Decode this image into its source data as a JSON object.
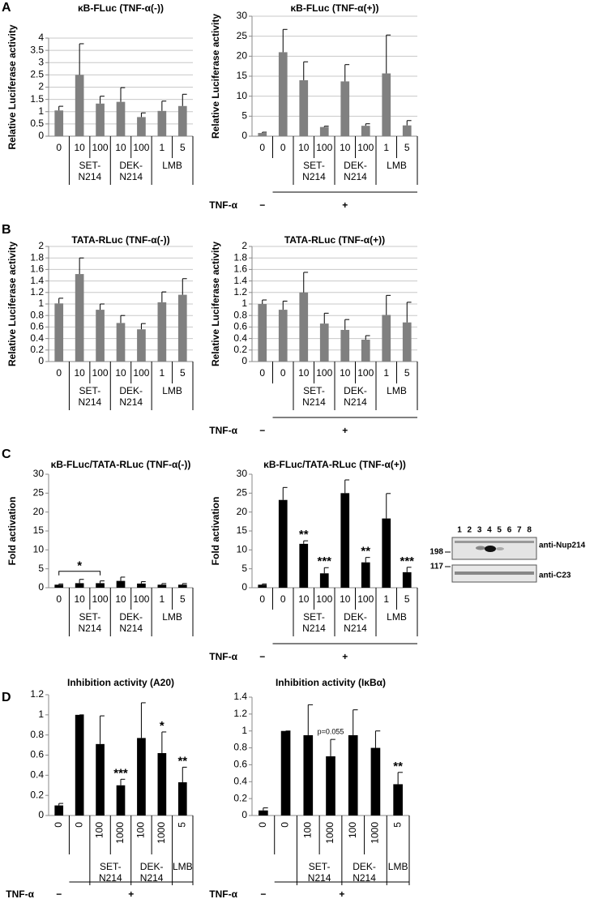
{
  "panels": [
    "A",
    "B",
    "C",
    "D"
  ],
  "blot": {
    "lanes": [
      "1",
      "2",
      "3",
      "4",
      "5",
      "6",
      "7",
      "8"
    ],
    "markers": [
      "198",
      "117"
    ],
    "antibodies": [
      "anti-Nup214",
      "anti-C23"
    ]
  },
  "chart_data": [
    {
      "type": "bar",
      "title": "κB-FLuc (TNF-α(-))",
      "y_label": "Relative Luciferase activity",
      "color": "#808080",
      "grid": true,
      "categories": [
        "0",
        "10",
        "100",
        "10",
        "100",
        "1",
        "5"
      ],
      "values": [
        1.05,
        2.5,
        1.33,
        1.4,
        0.78,
        1.03,
        1.23
      ],
      "errors": [
        0.17,
        1.27,
        0.3,
        0.58,
        0.17,
        0.4,
        0.48
      ],
      "groups": [
        null,
        [
          "SET-",
          "N214"
        ],
        [
          "SET-",
          "N214"
        ],
        [
          "DEK-",
          "N214"
        ],
        [
          "DEK-",
          "N214"
        ],
        [
          "LMB"
        ],
        [
          "LMB"
        ]
      ],
      "ylim": [
        0,
        4
      ],
      "yticks": [
        0,
        0.5,
        1,
        1.5,
        2,
        2.5,
        3,
        3.5,
        4
      ]
    },
    {
      "type": "bar",
      "title": "κB-FLuc (TNF-α(+))",
      "y_label": "Relative Luciferase activity",
      "color": "#808080",
      "grid": true,
      "categories": [
        "0",
        "0",
        "10",
        "100",
        "10",
        "100",
        "1",
        "5"
      ],
      "values": [
        0.8,
        21,
        14,
        2.3,
        13.7,
        2.6,
        15.7,
        2.7
      ],
      "errors": [
        0.2,
        5.7,
        4.6,
        0.2,
        4.2,
        0.5,
        9.6,
        1.2
      ],
      "groups": [
        null,
        null,
        [
          "SET-",
          "N214"
        ],
        [
          "SET-",
          "N214"
        ],
        [
          "DEK-",
          "N214"
        ],
        [
          "DEK-",
          "N214"
        ],
        [
          "LMB"
        ],
        [
          "LMB"
        ]
      ],
      "treatment_label": "TNF-α",
      "treatment": [
        "−",
        "+",
        "+",
        "+",
        "+",
        "+",
        "+",
        "+"
      ],
      "ylim": [
        0,
        30
      ],
      "yticks": [
        0,
        5,
        10,
        15,
        20,
        25,
        30
      ]
    },
    {
      "type": "bar",
      "title": "TATA-RLuc (TNF-α(-))",
      "y_label": "Relative Luciferase activity",
      "color": "#808080",
      "grid": true,
      "categories": [
        "0",
        "10",
        "100",
        "10",
        "100",
        "1",
        "5"
      ],
      "values": [
        1.01,
        1.52,
        0.9,
        0.67,
        0.56,
        1.03,
        1.16
      ],
      "errors": [
        0.09,
        0.28,
        0.1,
        0.13,
        0.1,
        0.18,
        0.28
      ],
      "groups": [
        null,
        [
          "SET-",
          "N214"
        ],
        [
          "SET-",
          "N214"
        ],
        [
          "DEK-",
          "N214"
        ],
        [
          "DEK-",
          "N214"
        ],
        [
          "LMB"
        ],
        [
          "LMB"
        ]
      ],
      "ylim": [
        0,
        2
      ],
      "yticks": [
        0,
        0.2,
        0.4,
        0.6,
        0.8,
        1,
        1.2,
        1.4,
        1.6,
        1.8,
        2
      ]
    },
    {
      "type": "bar",
      "title": "TATA-RLuc (TNF-α(+))",
      "y_label": "Relative Luciferase activity",
      "color": "#808080",
      "grid": true,
      "categories": [
        "0",
        "0",
        "10",
        "100",
        "10",
        "100",
        "1",
        "5"
      ],
      "values": [
        1.0,
        0.9,
        1.2,
        0.66,
        0.55,
        0.38,
        0.81,
        0.68
      ],
      "errors": [
        0.07,
        0.15,
        0.35,
        0.18,
        0.18,
        0.07,
        0.34,
        0.35
      ],
      "groups": [
        null,
        null,
        [
          "SET-",
          "N214"
        ],
        [
          "SET-",
          "N214"
        ],
        [
          "DEK-",
          "N214"
        ],
        [
          "DEK-",
          "N214"
        ],
        [
          "LMB"
        ],
        [
          "LMB"
        ]
      ],
      "treatment_label": "TNF-α",
      "treatment": [
        "−",
        "+",
        "+",
        "+",
        "+",
        "+",
        "+",
        "+"
      ],
      "ylim": [
        0,
        2
      ],
      "yticks": [
        0,
        0.2,
        0.4,
        0.6,
        0.8,
        1,
        1.2,
        1.4,
        1.6,
        1.8,
        2
      ]
    },
    {
      "type": "bar",
      "title": "κB-FLuc/TATA-RLuc (TNF-α(-))",
      "y_label": "Fold activation",
      "color": "#000000",
      "grid": false,
      "categories": [
        "0",
        "10",
        "100",
        "10",
        "100",
        "1",
        "5"
      ],
      "values": [
        0.8,
        1.2,
        1.2,
        1.8,
        1.1,
        0.8,
        0.8
      ],
      "errors": [
        0.2,
        1.0,
        0.6,
        1.0,
        0.5,
        0.3,
        0.3
      ],
      "groups": [
        null,
        [
          "SET-",
          "N214"
        ],
        [
          "SET-",
          "N214"
        ],
        [
          "DEK-",
          "N214"
        ],
        [
          "DEK-",
          "N214"
        ],
        [
          "LMB"
        ],
        [
          "LMB"
        ]
      ],
      "bracket": {
        "label": "*",
        "from": 0,
        "to": 2
      },
      "ylim": [
        0,
        30
      ],
      "yticks": [
        0,
        5,
        10,
        15,
        20,
        25,
        30
      ]
    },
    {
      "type": "bar",
      "title": "κB-FLuc/TATA-RLuc (TNF-α(+))",
      "y_label": "Fold activation",
      "color": "#000000",
      "grid": false,
      "categories": [
        "0",
        "0",
        "10",
        "100",
        "10",
        "100",
        "1",
        "5"
      ],
      "values": [
        0.8,
        23.2,
        11.6,
        3.8,
        25,
        6.7,
        18.3,
        4.1
      ],
      "errors": [
        0.2,
        3.3,
        0.8,
        1.5,
        3.5,
        1.3,
        6.6,
        1.3
      ],
      "annotations": [
        null,
        null,
        "**",
        "***",
        null,
        "**",
        null,
        "***"
      ],
      "groups": [
        null,
        null,
        [
          "SET-",
          "N214"
        ],
        [
          "SET-",
          "N214"
        ],
        [
          "DEK-",
          "N214"
        ],
        [
          "DEK-",
          "N214"
        ],
        [
          "LMB"
        ],
        [
          "LMB"
        ]
      ],
      "treatment_label": "TNF-α",
      "treatment": [
        "−",
        "+",
        "+",
        "+",
        "+",
        "+",
        "+",
        "+"
      ],
      "ylim": [
        0,
        30
      ],
      "yticks": [
        0,
        5,
        10,
        15,
        20,
        25,
        30
      ]
    },
    {
      "type": "bar",
      "title": "Inhibition activity (A20)",
      "color": "#000000",
      "grid": false,
      "rotate_labels": true,
      "categories": [
        "0",
        "0",
        "100",
        "1000",
        "100",
        "1000",
        "5"
      ],
      "values": [
        0.1,
        1.0,
        0.71,
        0.3,
        0.77,
        0.62,
        0.33
      ],
      "errors": [
        0.02,
        0,
        0.28,
        0.06,
        0.35,
        0.21,
        0.15
      ],
      "annotations": [
        null,
        null,
        null,
        "***",
        null,
        "*",
        "**"
      ],
      "groups": [
        null,
        null,
        [
          "SET-",
          "N214"
        ],
        [
          "SET-",
          "N214"
        ],
        [
          "DEK-",
          "N214"
        ],
        [
          "DEK-",
          "N214"
        ],
        [
          "LMB"
        ]
      ],
      "treatment_label": "TNF-α",
      "treatment": [
        "−",
        "+",
        "+",
        "+",
        "+",
        "+",
        "+"
      ],
      "ylim": [
        0,
        1.2
      ],
      "yticks": [
        0,
        0.2,
        0.4,
        0.6,
        0.8,
        1,
        1.2
      ]
    },
    {
      "type": "bar",
      "title": "Inhibition activity (IκBα)",
      "color": "#000000",
      "grid": false,
      "rotate_labels": true,
      "categories": [
        "0",
        "0",
        "100",
        "1000",
        "100",
        "1000",
        "5"
      ],
      "values": [
        0.06,
        1.0,
        0.95,
        0.7,
        0.95,
        0.8,
        0.37
      ],
      "errors": [
        0.03,
        0,
        0.36,
        0.2,
        0.3,
        0.2,
        0.14
      ],
      "annotations": [
        null,
        null,
        null,
        "p=0.055",
        null,
        null,
        "**"
      ],
      "groups": [
        null,
        null,
        [
          "SET-",
          "N214"
        ],
        [
          "SET-",
          "N214"
        ],
        [
          "DEK-",
          "N214"
        ],
        [
          "DEK-",
          "N214"
        ],
        [
          "LMB"
        ]
      ],
      "treatment_label": "TNF-α",
      "treatment": [
        "−",
        "+",
        "+",
        "+",
        "+",
        "+",
        "+"
      ],
      "ylim": [
        0,
        1.4
      ],
      "yticks": [
        0,
        0.2,
        0.4,
        0.6,
        0.8,
        1,
        1.2,
        1.4
      ]
    }
  ]
}
